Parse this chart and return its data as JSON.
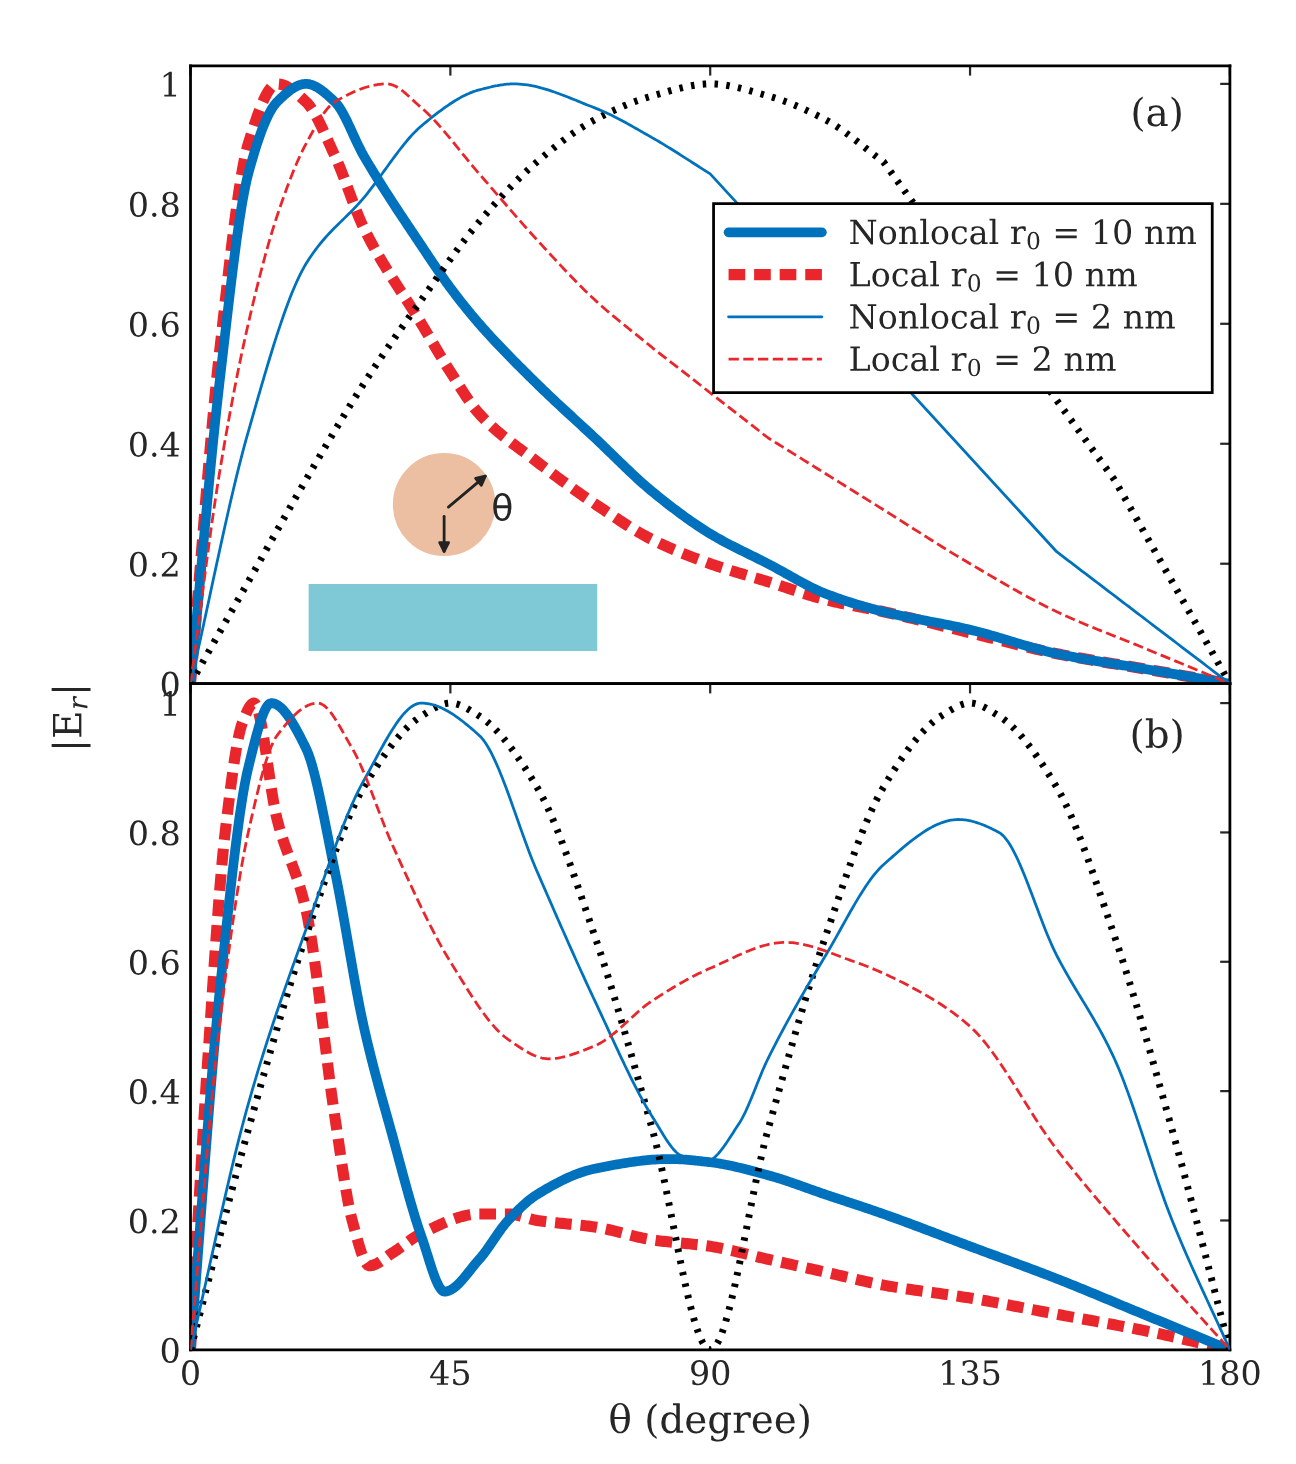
{
  "chart_data": [
    {
      "type": "line",
      "ylabel": "|E$_{r}$|",
      "annotations": [
        "(a)",
        "θ"
      ],
      "legend": "right",
      "grid": false,
      "tick_labels": "y",
      "xlim": [
        0,
        180
      ],
      "xticks": [
        0,
        45,
        90,
        135,
        180
      ],
      "ylim": [
        0,
        1.03
      ],
      "yticks": [
        0,
        0.2,
        0.4,
        0.6,
        0.8,
        1
      ],
      "series": [
        {
          "name": "Nonlocal r$_{0}$ = 10 nm",
          "color": "#0072bd",
          "line_style": "solid",
          "x": [
            0,
            5,
            10,
            15,
            20,
            25,
            30,
            40,
            45,
            50,
            60,
            70,
            80,
            90,
            100,
            110,
            120,
            135,
            150,
            165,
            180
          ],
          "values": [
            0,
            0.5,
            0.85,
            0.97,
            1,
            0.97,
            0.88,
            0.73,
            0.66,
            0.6,
            0.5,
            0.41,
            0.32,
            0.25,
            0.2,
            0.15,
            0.12,
            0.09,
            0.05,
            0.025,
            0
          ]
        },
        {
          "name": "Local r$_{0}$ = 10 nm",
          "color": "#e8262b",
          "line_style": "dashed",
          "x": [
            0,
            5,
            10,
            15,
            20,
            25,
            30,
            40,
            45,
            50,
            60,
            70,
            80,
            90,
            100,
            110,
            120,
            135,
            150,
            165,
            180
          ],
          "values": [
            0,
            0.55,
            0.9,
            1,
            0.97,
            0.88,
            0.76,
            0.6,
            0.52,
            0.45,
            0.37,
            0.3,
            0.24,
            0.2,
            0.17,
            0.14,
            0.12,
            0.085,
            0.05,
            0.025,
            0
          ]
        },
        {
          "name": "Nonlocal r$_{0}$ = 2 nm",
          "color": "#0072bd",
          "line_style": "solid",
          "x": [
            0,
            10,
            20,
            30,
            40,
            50,
            56,
            70,
            80,
            90,
            100,
            110,
            120,
            135,
            150,
            165,
            180
          ],
          "values": [
            0,
            0.42,
            0.7,
            0.81,
            0.93,
            0.99,
            1,
            0.96,
            0.91,
            0.85,
            null,
            null,
            null,
            null,
            0.22,
            0.11,
            0
          ]
        },
        {
          "name": "Local r$_{0}$ = 2 nm",
          "color": "#e8262b",
          "line_style": "dashed",
          "x": [
            0,
            5,
            10,
            15,
            20,
            25,
            34,
            40,
            50,
            60,
            70,
            80,
            90,
            100,
            110,
            120,
            135,
            150,
            165,
            180
          ],
          "values": [
            0,
            0.35,
            0.6,
            0.78,
            0.9,
            0.97,
            1,
            0.96,
            0.85,
            0.74,
            0.64,
            0.56,
            null,
            0.41,
            0.35,
            0.29,
            0.2,
            0.12,
            0.06,
            0
          ]
        },
        {
          "color": "#000000",
          "line_style": "dotted",
          "x": [
            0,
            10,
            20,
            30,
            40,
            50,
            60,
            70,
            80,
            90,
            100,
            110,
            120,
            130,
            140,
            150,
            160,
            170,
            180
          ],
          "values": [
            0,
            0.17,
            0.34,
            0.5,
            0.64,
            0.77,
            0.87,
            0.94,
            0.98,
            1,
            0.98,
            0.94,
            0.87,
            null,
            null,
            null,
            0.34,
            0.17,
            0
          ]
        }
      ]
    },
    {
      "type": "line",
      "xlabel": "θ (degree)",
      "annotations": [
        "(b)"
      ],
      "grid": false,
      "xlim": [
        0,
        180
      ],
      "xticks": [
        0,
        45,
        90,
        135,
        180
      ],
      "ylim": [
        0,
        1.03
      ],
      "yticks": [
        0,
        0.2,
        0.4,
        0.6,
        0.8,
        1
      ],
      "series": [
        {
          "color": "#0072bd",
          "line_style": "solid",
          "x": [
            0,
            5,
            10,
            14,
            20,
            25,
            30,
            35,
            40,
            44,
            50,
            55,
            60,
            70,
            83,
            90,
            100,
            110,
            120,
            135,
            150,
            165,
            180
          ],
          "values": [
            0,
            0.55,
            0.9,
            1,
            0.93,
            0.74,
            0.5,
            0.33,
            0.175,
            0.09,
            0.14,
            0.2,
            0.24,
            0.28,
            0.295,
            0.29,
            0.27,
            0.24,
            0.21,
            0.16,
            0.11,
            0.055,
            0
          ]
        },
        {
          "color": "#e8262b",
          "line_style": "dashed",
          "x": [
            0,
            3,
            6,
            9,
            11,
            15,
            20,
            25,
            28,
            31,
            35,
            40,
            50,
            55,
            60,
            70,
            80,
            90,
            100,
            110,
            120,
            135,
            150,
            165,
            180
          ],
          "values": [
            0,
            0.45,
            0.8,
            0.97,
            1,
            0.82,
            0.68,
            0.36,
            0.2,
            0.13,
            0.15,
            0.18,
            0.21,
            0.21,
            0.2,
            0.19,
            0.17,
            0.16,
            0.14,
            0.12,
            0.1,
            0.08,
            0.055,
            0.03,
            0
          ]
        },
        {
          "color": "#0072bd",
          "line_style": "solid",
          "x": [
            0,
            10,
            20,
            30,
            40,
            50,
            60,
            70,
            80,
            85,
            89,
            95,
            100,
            110,
            120,
            133,
            140,
            150,
            160,
            170,
            180
          ],
          "values": [
            0,
            0.38,
            0.65,
            0.88,
            1,
            0.95,
            0.74,
            0.54,
            0.36,
            0.3,
            0.29,
            0.35,
            0.45,
            0.61,
            0.75,
            0.82,
            0.8,
            0.61,
            0.45,
            0.2,
            0
          ]
        },
        {
          "color": "#e8262b",
          "line_style": "dashed",
          "x": [
            0,
            5,
            10,
            15,
            22,
            28,
            35,
            45,
            55,
            62,
            70,
            80,
            90,
            103,
            115,
            125,
            135,
            150,
            165,
            180
          ],
          "values": [
            0,
            0.5,
            0.8,
            0.95,
            1,
            0.93,
            0.78,
            0.6,
            0.48,
            0.45,
            0.47,
            0.54,
            0.59,
            0.63,
            0.6,
            0.56,
            0.5,
            0.31,
            0.15,
            0
          ]
        },
        {
          "color": "#000000",
          "line_style": "dotted",
          "x": [
            0,
            10,
            20,
            30,
            40,
            45,
            50,
            60,
            70,
            80,
            90,
            100,
            110,
            120,
            130,
            135,
            140,
            150,
            160,
            170,
            180
          ],
          "values": [
            0,
            0.34,
            0.64,
            0.87,
            0.98,
            1,
            0.98,
            0.87,
            0.64,
            0.34,
            0,
            0.34,
            0.64,
            0.87,
            0.98,
            1,
            0.98,
            0.87,
            0.64,
            0.34,
            0
          ]
        }
      ]
    }
  ]
}
